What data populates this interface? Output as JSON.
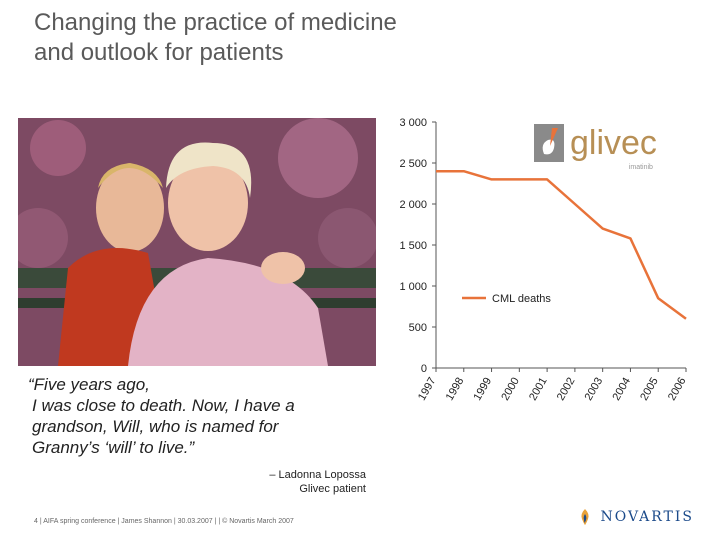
{
  "slide": {
    "title_line1": "Changing the practice of medicine",
    "title_line2": "and outlook for patients"
  },
  "quote": {
    "line1": "“Five years ago,",
    "line2": "I was close to death. Now, I have a",
    "line3": "grandson, Will, who is named for",
    "line4": "Granny’s ‘will’ to live.”"
  },
  "attribution": {
    "line1": "– Ladonna Lopossa",
    "line2": "Glivec patient"
  },
  "footer": "4 | AIFA spring conference | James Shannon | 30.03.2007 | | © Novartis March 2007",
  "logos": {
    "glivec": "glivec",
    "glivec_sub": "imatinib",
    "novartis": "NOVARTIS"
  },
  "colors": {
    "line": "#e8733a",
    "glivec": "#b78f55",
    "novartis": "#1b4a8a"
  },
  "chart_data": {
    "type": "line",
    "title": "",
    "xlabel": "",
    "ylabel": "",
    "x": [
      "1997",
      "1998",
      "1999",
      "2000",
      "2001",
      "2002",
      "2003",
      "2004",
      "2005",
      "2006"
    ],
    "series": [
      {
        "name": "CML deaths",
        "values": [
          2400,
          2400,
          2300,
          2300,
          2300,
          2000,
          1700,
          1580,
          850,
          600
        ]
      }
    ],
    "ylim": [
      0,
      3000
    ],
    "yticks": [
      0,
      500,
      1000,
      1500,
      2000,
      2500,
      3000
    ],
    "ytick_labels": [
      "0",
      "500",
      "1 000",
      "1 500",
      "2 000",
      "2 500",
      "3 000"
    ],
    "grid": false,
    "legend_position": "center-right"
  }
}
